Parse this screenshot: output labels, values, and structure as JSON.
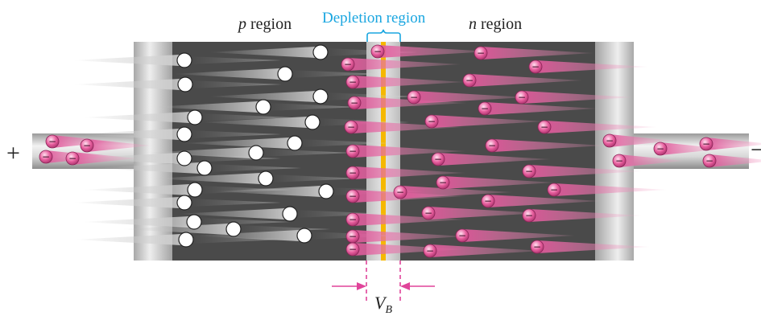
{
  "labels": {
    "p_prefix": "p",
    "p_suffix": " region",
    "depletion": "Depletion region",
    "n_prefix": "n",
    "n_suffix": " region",
    "plus": "+",
    "minus": "−",
    "vb_main": "V",
    "vb_sub": "B",
    "electron_sign": "−"
  },
  "colors": {
    "semiconductor_body": "#4a4a4a",
    "metal_contact": "#c6c6c6",
    "depletion_band": "#cfcfcf",
    "junction_line": "#f5b800",
    "electron_pink": "#e0579a",
    "hole_white": "#ffffff",
    "depletion_label": "#1aa6e0",
    "vb_marker": "#e0449a",
    "text": "#222222"
  },
  "icons": {
    "hole": "hole-icon",
    "electron": "electron-icon"
  }
}
